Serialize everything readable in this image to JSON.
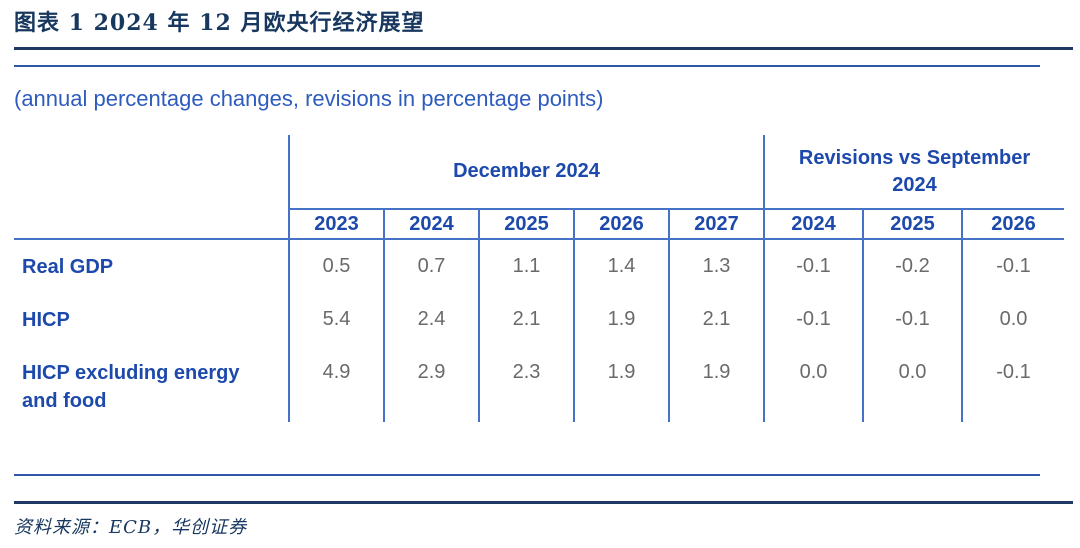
{
  "figure": {
    "title": "图表 1  2024 年 12 月欧央行经济展望",
    "subtitle": "(annual percentage changes, revisions in percentage points)",
    "source": "资料来源：ECB，华创证券"
  },
  "colors": {
    "title_navy": "#17375E",
    "rule_thick": "#1F3864",
    "rule_thin": "#2E55A8",
    "table_border_blue": "#4472C4",
    "header_text_blue": "#1D49AC",
    "subtitle_blue": "#2E5CBE",
    "value_gray": "#6A6A6A"
  },
  "chart_data": {
    "type": "table",
    "group_headers": [
      {
        "label": "December 2024",
        "span": 5
      },
      {
        "label": "Revisions vs September 2024",
        "span": 3
      }
    ],
    "year_headers": [
      "2023",
      "2024",
      "2025",
      "2026",
      "2027",
      "2024",
      "2025",
      "2026"
    ],
    "rows": [
      {
        "label": "Real GDP",
        "values": [
          "0.5",
          "0.7",
          "1.1",
          "1.4",
          "1.3",
          "-0.1",
          "-0.2",
          "-0.1"
        ]
      },
      {
        "label": "HICP",
        "values": [
          "5.4",
          "2.4",
          "2.1",
          "1.9",
          "2.1",
          "-0.1",
          "-0.1",
          "0.0"
        ]
      },
      {
        "label": "HICP excluding energy and food",
        "values": [
          "4.9",
          "2.9",
          "2.3",
          "1.9",
          "1.9",
          "0.0",
          "0.0",
          "-0.1"
        ]
      }
    ]
  }
}
